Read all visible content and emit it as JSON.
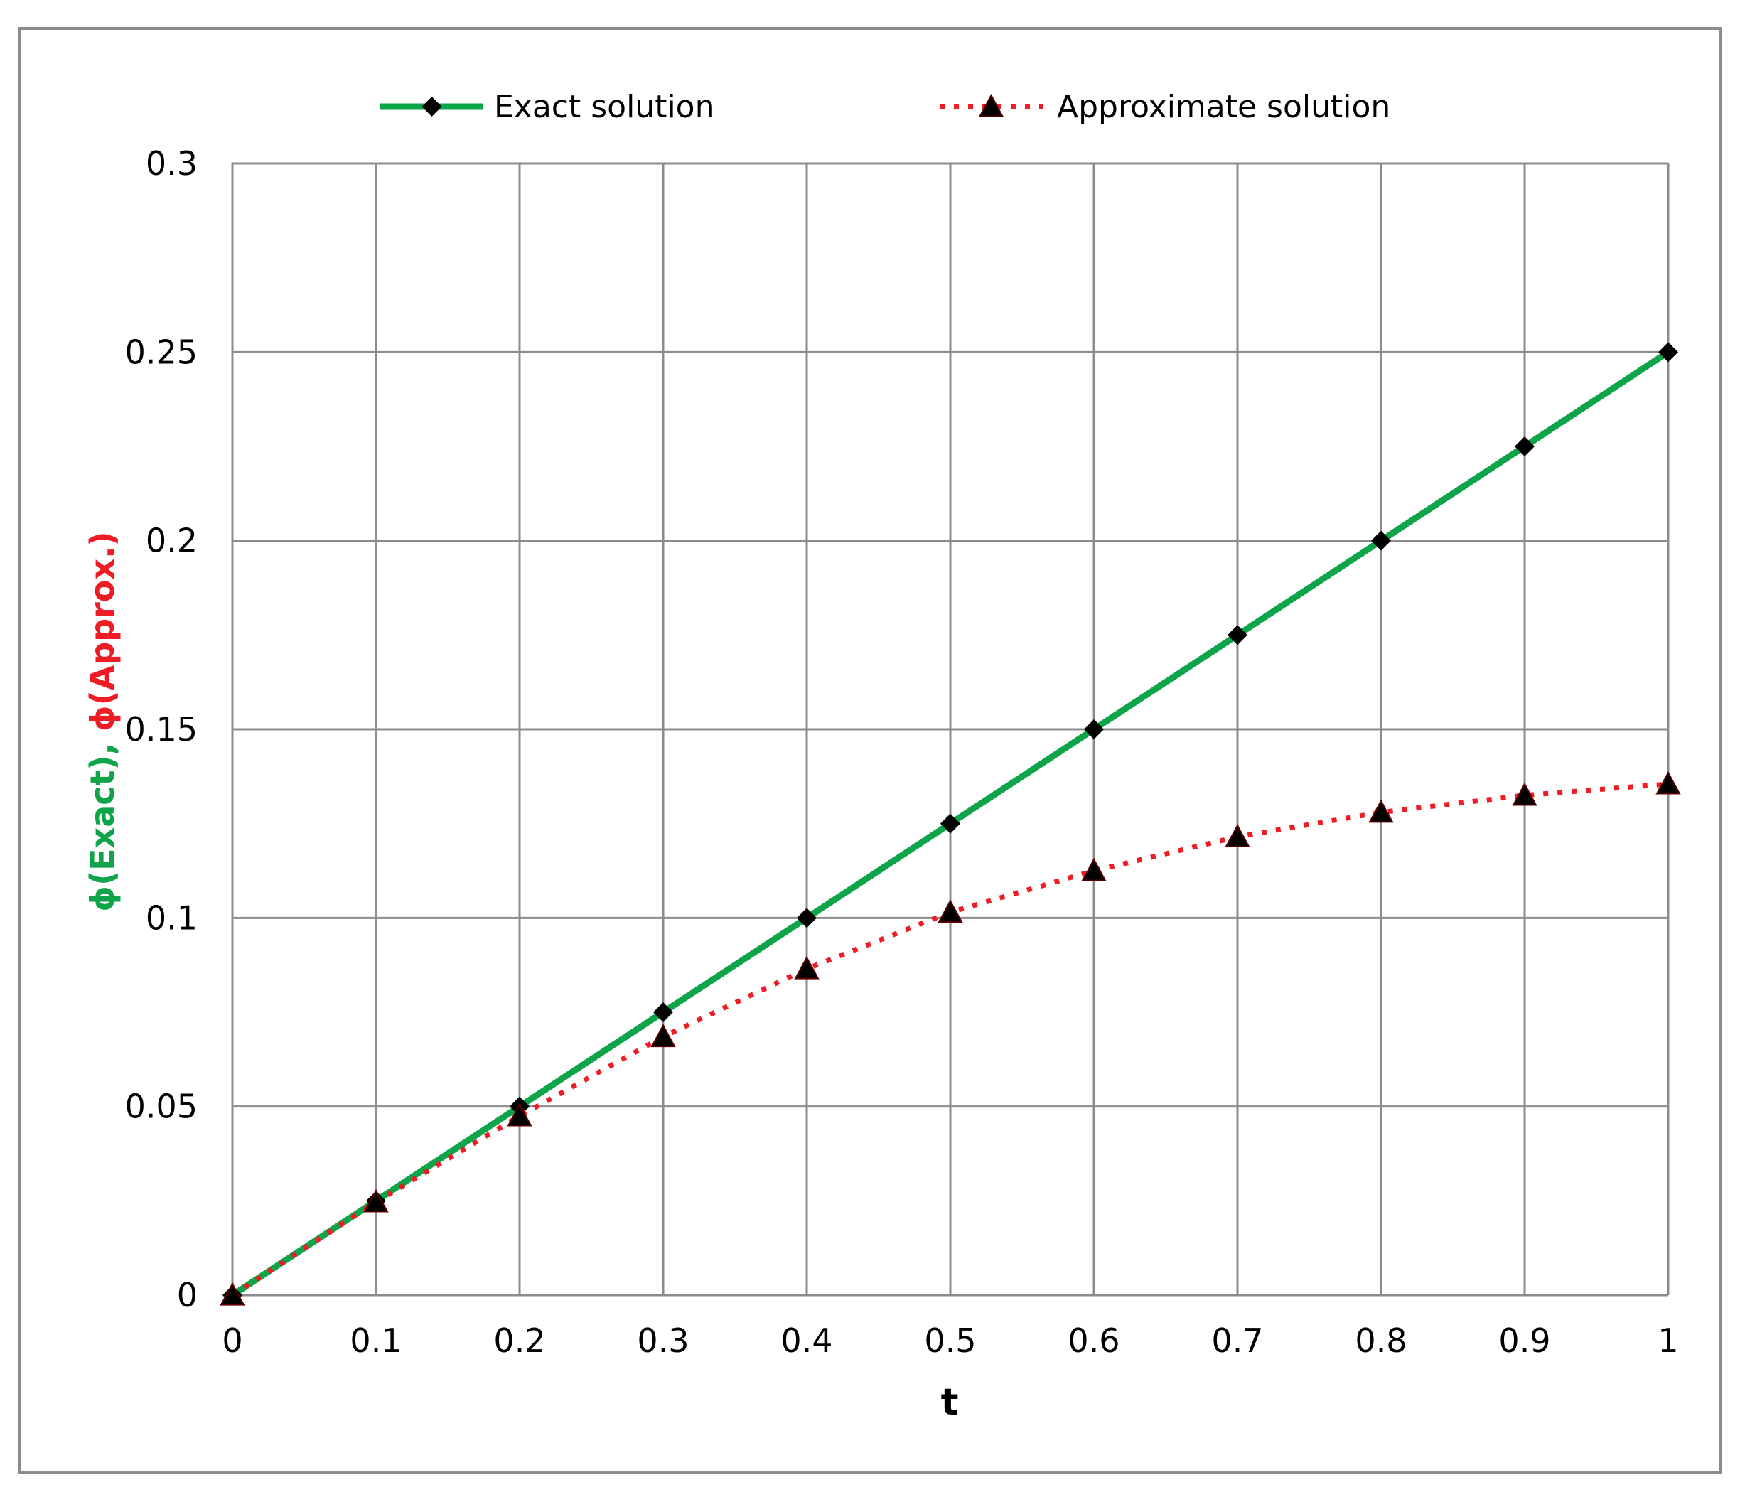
{
  "chart_data": {
    "type": "line",
    "xlabel": "t",
    "ylabel_parts": [
      {
        "text": "ϕ(Exact),",
        "color": "#0da44a"
      },
      {
        "text": "ϕ(Approx.)",
        "color": "#ee1c24"
      }
    ],
    "xlim": [
      0,
      1
    ],
    "ylim": [
      0,
      0.3
    ],
    "x_ticks": [
      "0",
      "0.1",
      "0.2",
      "0.3",
      "0.4",
      "0.5",
      "0.6",
      "0.7",
      "0.8",
      "0.9",
      "1"
    ],
    "y_ticks": [
      "0",
      "0.05",
      "0.1",
      "0.15",
      "0.2",
      "0.25",
      "0.3"
    ],
    "grid": true,
    "legend_position": "top",
    "x": [
      0,
      0.1,
      0.2,
      0.3,
      0.4,
      0.5,
      0.6,
      0.7,
      0.8,
      0.9,
      1.0
    ],
    "series": [
      {
        "name": "Exact solution",
        "style": "solid",
        "marker": "diamond",
        "color": "#0da44a",
        "marker_color": "#000000",
        "values": [
          0,
          0.025,
          0.05,
          0.075,
          0.1,
          0.125,
          0.15,
          0.175,
          0.2,
          0.225,
          0.25
        ]
      },
      {
        "name": "Approximate solution",
        "style": "dotted",
        "marker": "triangle",
        "color": "#ee1c24",
        "marker_color": "#000000",
        "values": [
          0,
          0.0247,
          0.0475,
          0.0685,
          0.0865,
          0.1015,
          0.1125,
          0.1215,
          0.128,
          0.1325,
          0.1355
        ]
      }
    ]
  }
}
